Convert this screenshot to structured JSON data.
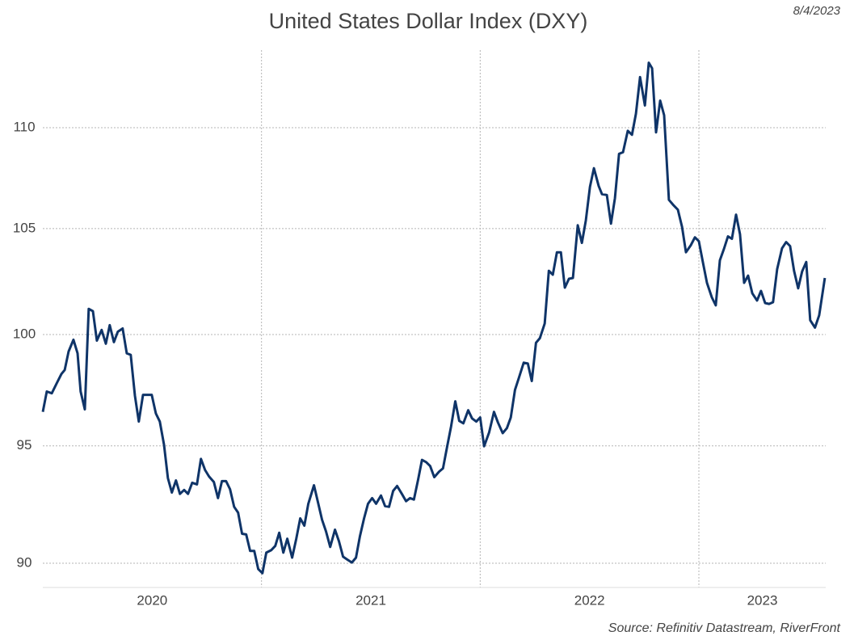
{
  "chart_data": {
    "type": "line",
    "title": "United States Dollar Index (DXY)",
    "date": "8/4/2023",
    "source": "Source: Refinitiv Datastream, RiverFront",
    "color": "#0f3468",
    "log_scale": true,
    "grid": true,
    "xlim": [
      2020,
      2023.58
    ],
    "ylim": [
      89,
      114
    ],
    "yticks": [
      90,
      95,
      100,
      105,
      110
    ],
    "xticks": [
      {
        "value": 2020.5,
        "label": "2020"
      },
      {
        "value": 2021.5,
        "label": "2021"
      },
      {
        "value": 2022.5,
        "label": "2022"
      },
      {
        "value": 2023.29,
        "label": "2023"
      }
    ],
    "xgrid": [
      2021,
      2022,
      2023
    ],
    "x": [
      2020.0,
      2020.018,
      2020.041,
      2020.063,
      2020.085,
      2020.1,
      2020.118,
      2020.14,
      2020.159,
      2020.173,
      2020.192,
      2020.21,
      2020.229,
      2020.247,
      2020.269,
      2020.288,
      2020.306,
      2020.325,
      2020.343,
      2020.365,
      2020.384,
      2020.402,
      2020.421,
      2020.439,
      2020.458,
      2020.48,
      2020.498,
      2020.517,
      2020.535,
      2020.554,
      2020.572,
      2020.59,
      2020.609,
      2020.627,
      2020.646,
      2020.664,
      2020.683,
      2020.705,
      2020.723,
      2020.742,
      2020.76,
      2020.782,
      2020.801,
      2020.819,
      2020.838,
      2020.856,
      2020.875,
      2020.893,
      2020.911,
      2020.93,
      2020.948,
      2020.967,
      2020.985,
      2021.004,
      2021.022,
      2021.044,
      2021.063,
      2021.081,
      2021.1,
      2021.118,
      2021.14,
      2021.159,
      2021.177,
      2021.196,
      2021.214,
      2021.24,
      2021.258,
      2021.277,
      2021.295,
      2021.314,
      2021.336,
      2021.354,
      2021.373,
      2021.391,
      2021.413,
      2021.432,
      2021.45,
      2021.469,
      2021.487,
      2021.506,
      2021.524,
      2021.546,
      2021.565,
      2021.583,
      2021.602,
      2021.62,
      2021.642,
      2021.661,
      2021.679,
      2021.697,
      2021.716,
      2021.734,
      2021.753,
      2021.771,
      2021.79,
      2021.812,
      2021.83,
      2021.849,
      2021.867,
      2021.886,
      2021.904,
      2021.923,
      2021.945,
      2021.963,
      2021.982,
      2022.0,
      2022.018,
      2022.041,
      2022.063,
      2022.081,
      2022.103,
      2022.122,
      2022.14,
      2022.159,
      2022.177,
      2022.199,
      2022.218,
      2022.236,
      2022.255,
      2022.273,
      2022.295,
      2022.314,
      2022.332,
      2022.351,
      2022.369,
      2022.387,
      2022.406,
      2022.424,
      2022.446,
      2022.465,
      2022.483,
      2022.502,
      2022.52,
      2022.542,
      2022.557,
      2022.579,
      2022.598,
      2022.616,
      2022.635,
      2022.653,
      2022.675,
      2022.694,
      2022.712,
      2022.731,
      2022.753,
      2022.771,
      2022.786,
      2022.804,
      2022.823,
      2022.841,
      2022.863,
      2022.882,
      2022.904,
      2022.923,
      2022.941,
      2022.963,
      2022.982,
      2023.0,
      2023.018,
      2023.037,
      2023.059,
      2023.077,
      2023.096,
      2023.114,
      2023.133,
      2023.151,
      2023.17,
      2023.188,
      2023.207,
      2023.225,
      2023.244,
      2023.266,
      2023.284,
      2023.303,
      2023.321,
      2023.339,
      2023.358,
      2023.38,
      2023.399,
      2023.417,
      2023.435,
      2023.454,
      2023.472,
      2023.491,
      2023.509,
      2023.531,
      2023.55,
      2023.576
    ],
    "values": [
      96.5,
      97.41,
      97.33,
      97.77,
      98.2,
      98.38,
      99.22,
      99.76,
      99.14,
      97.41,
      96.61,
      101.19,
      101.08,
      99.72,
      100.21,
      99.58,
      100.43,
      99.65,
      100.13,
      100.28,
      99.14,
      99.07,
      97.22,
      96.07,
      97.26,
      97.26,
      97.26,
      96.43,
      96.07,
      95.05,
      93.6,
      92.98,
      93.5,
      92.92,
      93.09,
      92.92,
      93.4,
      93.33,
      94.43,
      93.95,
      93.67,
      93.43,
      92.74,
      93.47,
      93.47,
      93.12,
      92.37,
      92.12,
      91.23,
      91.2,
      90.51,
      90.51,
      89.76,
      89.59,
      90.44,
      90.54,
      90.72,
      91.27,
      90.44,
      91.02,
      90.23,
      91.02,
      91.88,
      91.57,
      92.5,
      93.29,
      92.57,
      91.82,
      91.33,
      90.68,
      91.4,
      90.92,
      90.27,
      90.16,
      90.03,
      90.23,
      91.13,
      91.88,
      92.5,
      92.74,
      92.5,
      92.85,
      92.4,
      92.37,
      93.05,
      93.26,
      92.92,
      92.61,
      92.74,
      92.68,
      93.53,
      94.39,
      94.29,
      94.12,
      93.64,
      93.88,
      94.02,
      94.98,
      95.85,
      96.97,
      96.1,
      95.99,
      96.57,
      96.21,
      96.07,
      96.25,
      94.98,
      95.59,
      96.5,
      96.03,
      95.56,
      95.78,
      96.25,
      97.48,
      98.02,
      98.71,
      98.67,
      97.88,
      99.62,
      99.83,
      100.51,
      102.98,
      102.79,
      103.86,
      103.86,
      102.18,
      102.6,
      102.64,
      105.16,
      104.31,
      105.4,
      107.04,
      107.96,
      107.08,
      106.68,
      106.64,
      105.24,
      106.48,
      108.68,
      108.76,
      109.84,
      109.64,
      110.71,
      112.59,
      111.13,
      113.34,
      113.05,
      109.76,
      111.38,
      110.63,
      106.4,
      106.16,
      105.92,
      105.08,
      103.86,
      104.2,
      104.58,
      104.39,
      103.4,
      102.41,
      101.73,
      101.35,
      103.48,
      104.01,
      104.62,
      104.51,
      105.68,
      104.73,
      102.41,
      102.75,
      101.92,
      101.58,
      102.03,
      101.46,
      101.42,
      101.5,
      103.06,
      104.05,
      104.35,
      104.16,
      102.98,
      102.15,
      102.95,
      103.4,
      100.66,
      100.32,
      100.89,
      102.64
    ]
  }
}
